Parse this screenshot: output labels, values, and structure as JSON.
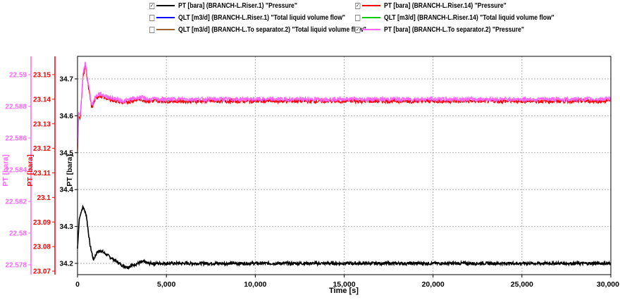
{
  "legend": [
    {
      "checked": true,
      "color": "#000000",
      "label": "PT [bara] (BRANCH-L.Riser.1) \"Pressure\""
    },
    {
      "checked": true,
      "color": "#ff0000",
      "label": "PT [bara] (BRANCH-L.Riser.14) \"Pressure\""
    },
    {
      "checked": false,
      "color": "#0000ff",
      "label": "QLT [m3/d] (BRANCH-L.Riser.1) \"Total liquid volume flow\""
    },
    {
      "checked": false,
      "color": "#00cc00",
      "label": "QLT [m3/d] (BRANCH-L.Riser.14) \"Total liquid volume flow\""
    },
    {
      "checked": false,
      "color": "#996633",
      "label": "QLT [m3/d] (BRANCH-L.To separator.2) \"Total liquid volume flow\""
    },
    {
      "checked": true,
      "color": "#ff66ff",
      "label": "PT [bara] (BRANCH-L.To separator.2) \"Pressure\""
    }
  ],
  "check_mark": "☑",
  "chart_data": {
    "type": "line",
    "xlabel": "Time [s]",
    "xlim": [
      0,
      30000
    ],
    "xticks": [
      0,
      5000,
      10000,
      15000,
      20000,
      25000,
      30000
    ],
    "xtick_labels": [
      "0",
      "5,000",
      "10,000",
      "15,000",
      "20,000",
      "25,000",
      "30,000"
    ],
    "grid": true,
    "axes": [
      {
        "id": "pink",
        "label": "PT [bara]",
        "color": "#ff66ff",
        "ticks": [
          22.578,
          22.58,
          22.582,
          22.584,
          22.586,
          22.588,
          22.59
        ],
        "tick_labels": [
          "22.578",
          "22.58",
          "22.582",
          "22.584",
          "22.586",
          "22.588",
          "22.59"
        ]
      },
      {
        "id": "red",
        "label": "PT [bara]",
        "color": "#ff0000",
        "ticks": [
          23.07,
          23.08,
          23.09,
          23.1,
          23.11,
          23.12,
          23.13,
          23.14,
          23.15
        ],
        "tick_labels": [
          "23.07",
          "23.08",
          "23.09",
          "23.1",
          "23.11",
          "23.12",
          "23.13",
          "23.14",
          "23.15"
        ]
      },
      {
        "id": "black",
        "label": "PT [bara]",
        "color": "#000000",
        "ticks": [
          34.2,
          34.3,
          34.4,
          34.5,
          34.6,
          34.7
        ],
        "tick_labels": [
          "34.2",
          "34.3",
          "34.4",
          "34.5",
          "34.6",
          "34.7"
        ]
      }
    ],
    "series": [
      {
        "name": "PT [bara] (BRANCH-L.Riser.1) \"Pressure\"",
        "color": "#000000",
        "axis": "black",
        "x": [
          0,
          100,
          300,
          500,
          700,
          900,
          1100,
          1300,
          1600,
          1900,
          2200,
          2500,
          2800,
          3100,
          3400,
          3700,
          4000,
          6000,
          10000,
          15000,
          20000,
          25000,
          30000
        ],
        "y": [
          34.24,
          34.32,
          34.355,
          34.33,
          34.25,
          34.21,
          34.23,
          34.235,
          34.225,
          34.215,
          34.205,
          34.195,
          34.19,
          34.195,
          34.2,
          34.205,
          34.2,
          34.2,
          34.2,
          34.2,
          34.2,
          34.2,
          34.2
        ],
        "noise": 0.004
      },
      {
        "name": "PT [bara] (BRANCH-L.Riser.14) \"Pressure\"",
        "color": "#ff0000",
        "axis": "black",
        "x": [
          0,
          60,
          150,
          300,
          450,
          600,
          800,
          1000,
          1200,
          1500,
          1800,
          2200,
          2600,
          3000,
          3500,
          4000,
          6000,
          10000,
          15000,
          20000,
          25000,
          30000
        ],
        "y": [
          34.5,
          34.6,
          34.59,
          34.7,
          34.74,
          34.68,
          34.62,
          34.645,
          34.655,
          34.65,
          34.645,
          34.64,
          34.635,
          34.64,
          34.645,
          34.64,
          34.64,
          34.64,
          34.64,
          34.64,
          34.64,
          34.64
        ],
        "noise": 0.006
      },
      {
        "name": "PT [bara] (BRANCH-L.To separator.2) \"Pressure\"",
        "color": "#ff66ff",
        "axis": "black",
        "x": [
          0,
          60,
          150,
          300,
          450,
          600,
          800,
          1000,
          1200,
          1500,
          1800,
          2200,
          2600,
          3000,
          3500,
          4000,
          6000,
          10000,
          15000,
          20000,
          25000,
          30000
        ],
        "y": [
          34.52,
          34.61,
          34.6,
          34.71,
          34.745,
          34.69,
          34.63,
          34.65,
          34.66,
          34.655,
          34.65,
          34.645,
          34.64,
          34.645,
          34.65,
          34.645,
          34.645,
          34.645,
          34.645,
          34.645,
          34.645,
          34.645
        ],
        "noise": 0.006
      }
    ]
  }
}
